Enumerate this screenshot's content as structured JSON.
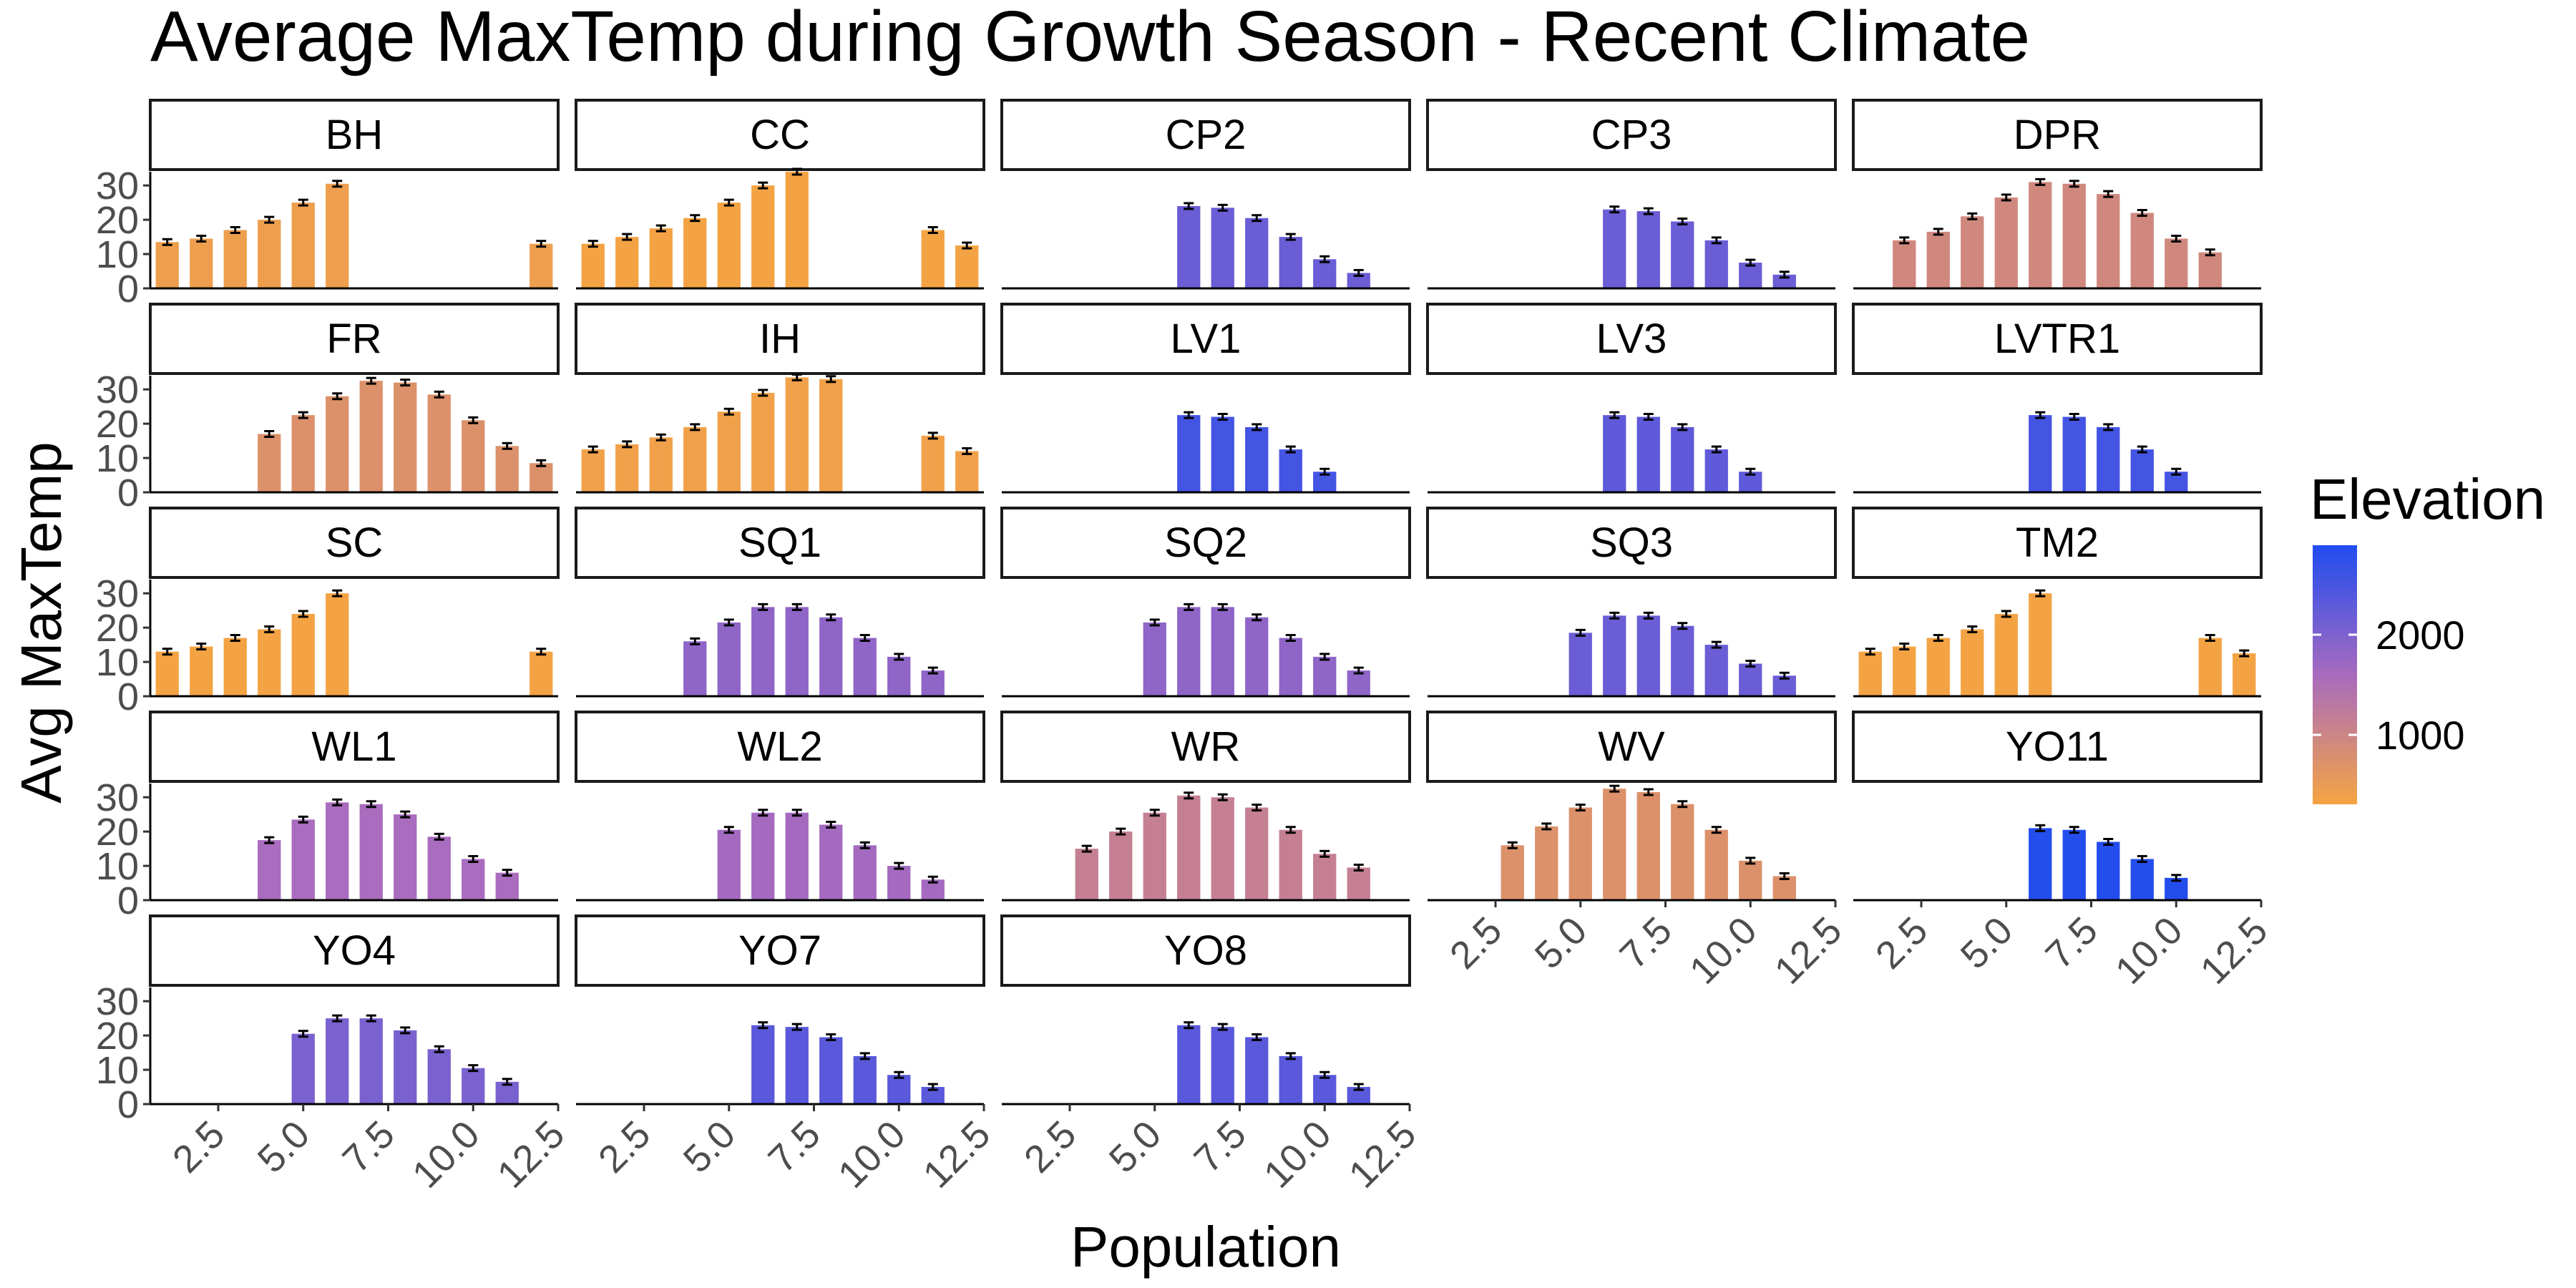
{
  "chart_data": {
    "type": "bar",
    "title": "Average MaxTemp during Growth Season - Recent Climate",
    "xlabel": "Population",
    "ylabel": "Avg MaxTemp",
    "xlim": [
      0.5,
      12.5
    ],
    "ylim": [
      0,
      34
    ],
    "xticks": [
      "2.5",
      "5.0",
      "7.5",
      "10.0",
      "12.5"
    ],
    "yticks": [
      "0",
      "10",
      "20",
      "30"
    ],
    "legend": {
      "title": "Elevation",
      "position": "right",
      "ticks": [
        "1000",
        "2000"
      ],
      "low_color": "#f5a442",
      "mid_color": "#a86bbf",
      "high_color": "#1f4cf0"
    },
    "panels": [
      {
        "name": "BH",
        "elevation": 500,
        "x": [
          1,
          2,
          3,
          4,
          5,
          6,
          12
        ],
        "values": [
          13.5,
          14.5,
          17,
          20,
          25,
          30.5,
          13
        ]
      },
      {
        "name": "CC",
        "elevation": 400,
        "x": [
          1,
          2,
          3,
          4,
          5,
          6,
          7,
          11,
          12
        ],
        "values": [
          13,
          15,
          17.5,
          20.5,
          25,
          30,
          34,
          17,
          12.5
        ]
      },
      {
        "name": "CP2",
        "elevation": 2250,
        "x": [
          6,
          7,
          8,
          9,
          10,
          11
        ],
        "values": [
          24,
          23.5,
          20.5,
          15,
          8.5,
          4.5
        ]
      },
      {
        "name": "CP3",
        "elevation": 2250,
        "x": [
          6,
          7,
          8,
          9,
          10,
          11
        ],
        "values": [
          23,
          22.5,
          19.5,
          14,
          7.5,
          4
        ]
      },
      {
        "name": "DPR",
        "elevation": 1000,
        "x": [
          2,
          3,
          4,
          5,
          6,
          7,
          8,
          9,
          10,
          11
        ],
        "values": [
          14,
          16.5,
          21,
          26.5,
          31,
          30.5,
          27.5,
          22,
          14.5,
          10.5
        ]
      },
      {
        "name": "FR",
        "elevation": 800,
        "x": [
          4,
          5,
          6,
          7,
          8,
          9,
          10,
          11,
          12
        ],
        "values": [
          17,
          22.5,
          28,
          32.5,
          32,
          28.5,
          21,
          13.5,
          8.5
        ]
      },
      {
        "name": "IH",
        "elevation": 450,
        "x": [
          1,
          2,
          3,
          4,
          5,
          6,
          7,
          8,
          11,
          12
        ],
        "values": [
          12.5,
          14,
          16,
          19,
          23.5,
          29,
          33.5,
          33,
          16.5,
          12
        ]
      },
      {
        "name": "LV1",
        "elevation": 2600,
        "x": [
          6,
          7,
          8,
          9,
          10
        ],
        "values": [
          22.5,
          22,
          19,
          12.5,
          6
        ]
      },
      {
        "name": "LV3",
        "elevation": 2350,
        "x": [
          6,
          7,
          8,
          9,
          10
        ],
        "values": [
          22.5,
          22,
          19,
          12.5,
          6
        ]
      },
      {
        "name": "LVTR1",
        "elevation": 2600,
        "x": [
          6,
          7,
          8,
          9,
          10
        ],
        "values": [
          22.5,
          22,
          19,
          12.5,
          6
        ]
      },
      {
        "name": "SC",
        "elevation": 400,
        "x": [
          1,
          2,
          3,
          4,
          5,
          6,
          12
        ],
        "values": [
          13,
          14.5,
          17,
          19.5,
          24,
          30,
          13
        ]
      },
      {
        "name": "SQ1",
        "elevation": 1900,
        "x": [
          4,
          5,
          6,
          7,
          8,
          9,
          10,
          11
        ],
        "values": [
          16,
          21.5,
          26,
          26,
          23,
          17,
          11.5,
          7.5
        ]
      },
      {
        "name": "SQ2",
        "elevation": 1900,
        "x": [
          5,
          6,
          7,
          8,
          9,
          10,
          11
        ],
        "values": [
          21.5,
          26,
          26,
          23,
          17,
          11.5,
          7.5
        ]
      },
      {
        "name": "SQ3",
        "elevation": 2250,
        "x": [
          5,
          6,
          7,
          8,
          9,
          10,
          11
        ],
        "values": [
          18.5,
          23.5,
          23.5,
          20.5,
          15,
          9.5,
          6
        ]
      },
      {
        "name": "TM2",
        "elevation": 400,
        "x": [
          1,
          2,
          3,
          4,
          5,
          6,
          11,
          12
        ],
        "values": [
          13,
          14.5,
          17,
          19.5,
          24,
          30,
          17,
          12.5
        ]
      },
      {
        "name": "WL1",
        "elevation": 1650,
        "x": [
          4,
          5,
          6,
          7,
          8,
          9,
          10,
          11
        ],
        "values": [
          17.5,
          23.5,
          28.5,
          28,
          25,
          18.5,
          12,
          8
        ]
      },
      {
        "name": "WL2",
        "elevation": 1700,
        "x": [
          5,
          6,
          7,
          8,
          9,
          10,
          11
        ],
        "values": [
          20.5,
          25.5,
          25.5,
          22,
          16,
          10,
          6
        ]
      },
      {
        "name": "WR",
        "elevation": 1200,
        "x": [
          3,
          4,
          5,
          6,
          7,
          8,
          9,
          10,
          11
        ],
        "values": [
          15,
          20,
          25.5,
          30.5,
          30,
          27,
          20.5,
          13.5,
          9.5
        ]
      },
      {
        "name": "WV",
        "elevation": 800,
        "x": [
          3,
          4,
          5,
          6,
          7,
          8,
          9,
          10,
          11
        ],
        "values": [
          16,
          21.5,
          27,
          32.5,
          31.5,
          28,
          20.5,
          11.5,
          7
        ]
      },
      {
        "name": "YO11",
        "elevation": 2900,
        "x": [
          6,
          7,
          8,
          9,
          10
        ],
        "values": [
          21,
          20.5,
          17,
          12,
          6.5
        ]
      },
      {
        "name": "YO4",
        "elevation": 2100,
        "x": [
          5,
          6,
          7,
          8,
          9,
          10,
          11
        ],
        "values": [
          20.5,
          25,
          25,
          21.5,
          16,
          10.5,
          6.5
        ]
      },
      {
        "name": "YO7",
        "elevation": 2400,
        "x": [
          6,
          7,
          8,
          9,
          10,
          11
        ],
        "values": [
          23,
          22.5,
          19.5,
          14,
          8.5,
          5
        ]
      },
      {
        "name": "YO8",
        "elevation": 2400,
        "x": [
          6,
          7,
          8,
          9,
          10,
          11
        ],
        "values": [
          23,
          22.5,
          19.5,
          14,
          8.5,
          5
        ]
      }
    ]
  }
}
